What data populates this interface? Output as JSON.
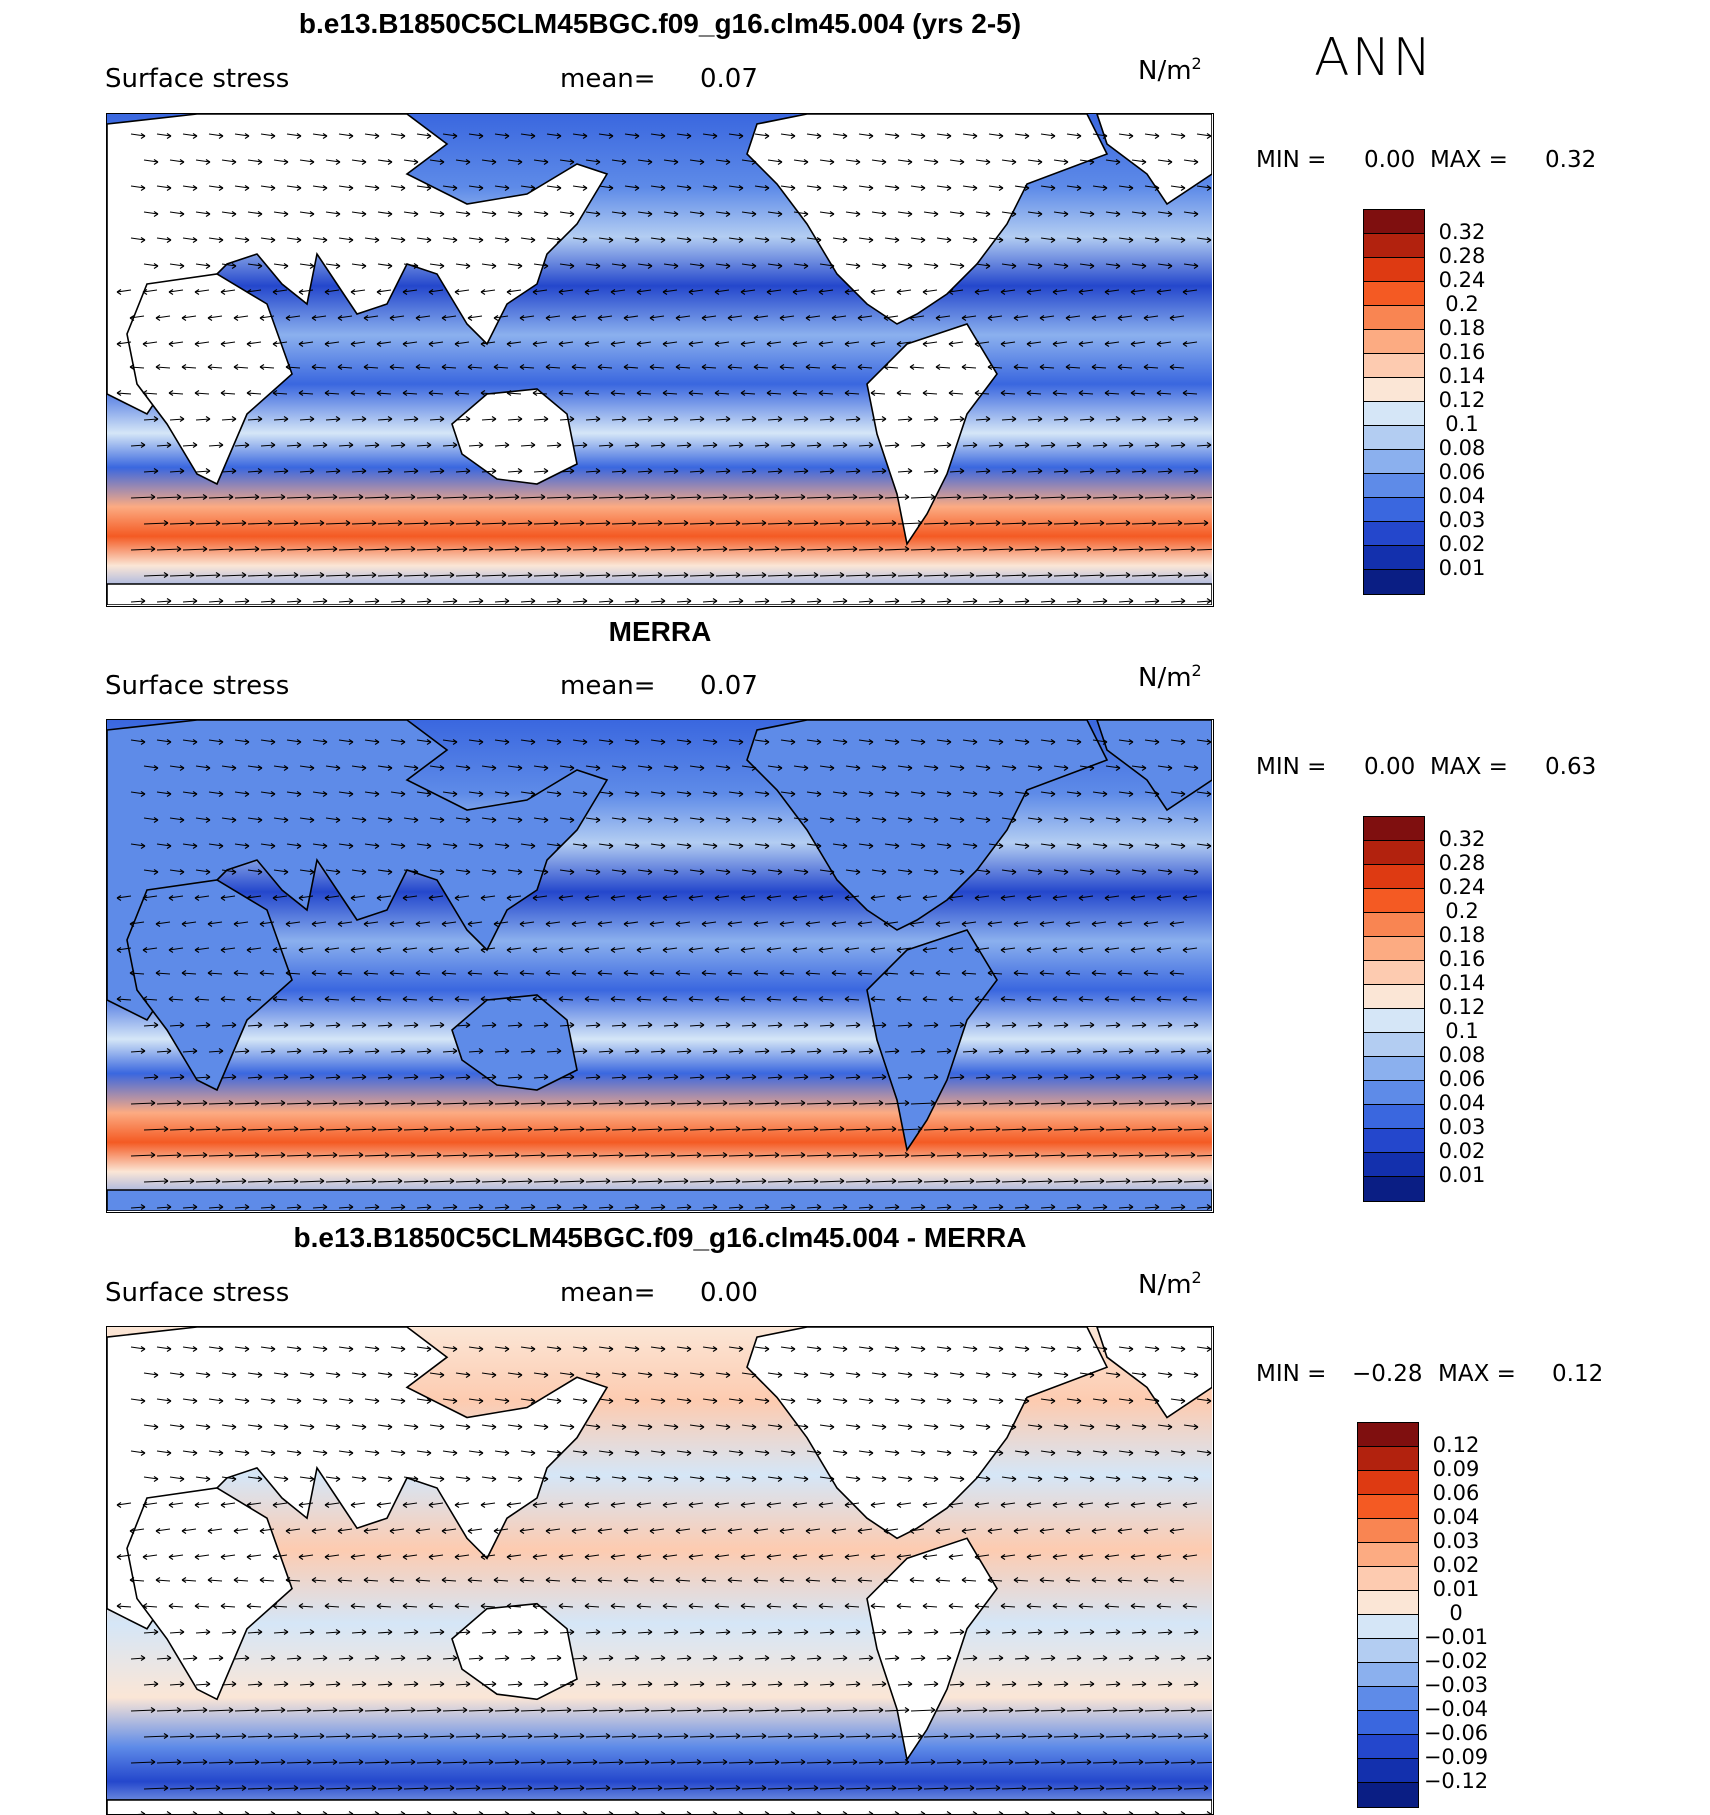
{
  "season": "ANN",
  "panels": [
    {
      "title": "b.e13.B1850C5CLM45BGC.f09_g16.clm45.004 (yrs 2-5)",
      "variable": "Surface stress",
      "mean_label": "mean=",
      "mean_value": "0.07",
      "units_base": "N/m",
      "units_exp": "2",
      "min_label": "MIN =",
      "min_value": "0.00",
      "max_label": "MAX =",
      "max_value": "0.32",
      "field_type": "absolute",
      "colorbar": {
        "labels": [
          "0.32",
          "0.28",
          "0.24",
          "0.2",
          "0.18",
          "0.16",
          "0.14",
          "0.12",
          "0.1",
          "0.08",
          "0.06",
          "0.04",
          "0.03",
          "0.02",
          "0.01"
        ],
        "colors": [
          "#7f0f0f",
          "#b2220e",
          "#de3a12",
          "#f45a23",
          "#f98552",
          "#fcab82",
          "#fdcbb0",
          "#fbe6d6",
          "#d5e6f7",
          "#b3cdf2",
          "#8bb0ee",
          "#5e8be8",
          "#3a67df",
          "#2447cc",
          "#1330ad",
          "#0a1e84"
        ]
      }
    },
    {
      "title": "MERRA",
      "variable": "Surface stress",
      "mean_label": "mean=",
      "mean_value": "0.07",
      "units_base": "N/m",
      "units_exp": "2",
      "min_label": "MIN =",
      "min_value": "0.00",
      "max_label": "MAX =",
      "max_value": "0.63",
      "field_type": "absolute",
      "colorbar": {
        "labels": [
          "0.32",
          "0.28",
          "0.24",
          "0.2",
          "0.18",
          "0.16",
          "0.14",
          "0.12",
          "0.1",
          "0.08",
          "0.06",
          "0.04",
          "0.03",
          "0.02",
          "0.01"
        ],
        "colors": [
          "#7f0f0f",
          "#b2220e",
          "#de3a12",
          "#f45a23",
          "#f98552",
          "#fcab82",
          "#fdcbb0",
          "#fbe6d6",
          "#d5e6f7",
          "#b3cdf2",
          "#8bb0ee",
          "#5e8be8",
          "#3a67df",
          "#2447cc",
          "#1330ad",
          "#0a1e84"
        ]
      }
    },
    {
      "title": "b.e13.B1850C5CLM45BGC.f09_g16.clm45.004 - MERRA",
      "variable": "Surface stress",
      "mean_label": "mean=",
      "mean_value": "0.00",
      "units_base": "N/m",
      "units_exp": "2",
      "min_label": "MIN =",
      "min_value": "−0.28",
      "max_label": "MAX =",
      "max_value": "0.12",
      "field_type": "difference",
      "colorbar": {
        "labels": [
          "0.12",
          "0.09",
          "0.06",
          "0.04",
          "0.03",
          "0.02",
          "0.01",
          "0",
          "−0.01",
          "−0.02",
          "−0.03",
          "−0.04",
          "−0.06",
          "−0.09",
          "−0.12"
        ],
        "colors": [
          "#7f0f0f",
          "#b2220e",
          "#de3a12",
          "#f45a23",
          "#f98552",
          "#fcab82",
          "#fdcbb0",
          "#fbe6d6",
          "#d5e6f7",
          "#b3cdf2",
          "#8bb0ee",
          "#5e8be8",
          "#3a67df",
          "#2447cc",
          "#1330ad",
          "#0a1e84"
        ]
      }
    }
  ]
}
